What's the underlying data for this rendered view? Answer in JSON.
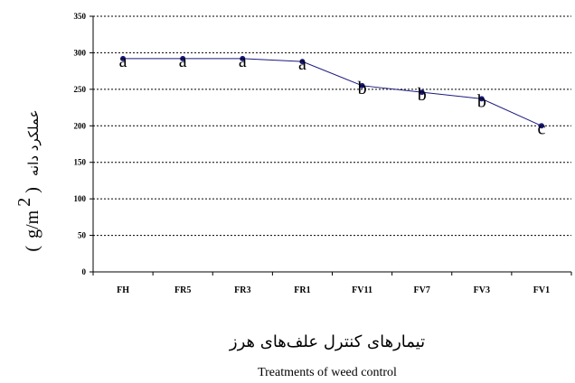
{
  "chart_data": {
    "type": "line",
    "categories": [
      "FH",
      "FR5",
      "FR3",
      "FR1",
      "FV11",
      "FV7",
      "FV3",
      "FV1"
    ],
    "values": [
      292,
      292,
      292,
      288,
      255,
      246,
      237,
      200
    ],
    "significance_letters": [
      "a",
      "a",
      "a",
      "a",
      "b",
      "b",
      "b",
      "c"
    ],
    "xlabel_fa": "تیمارهای کنترل علف‌های هرز",
    "xlabel_en": "Treatments of weed control",
    "ylabel_fa": "عملکرد دانه",
    "ylabel_unit_open": "(",
    "ylabel_unit": "g/m",
    "ylabel_unit_exp": "2",
    "ylabel_unit_close": ")",
    "ylim": [
      0,
      350
    ],
    "yticks": [
      0,
      50,
      100,
      150,
      200,
      250,
      300,
      350
    ],
    "grid": true,
    "line_color": "#1a1a80",
    "marker_color": "#1a1a80"
  }
}
